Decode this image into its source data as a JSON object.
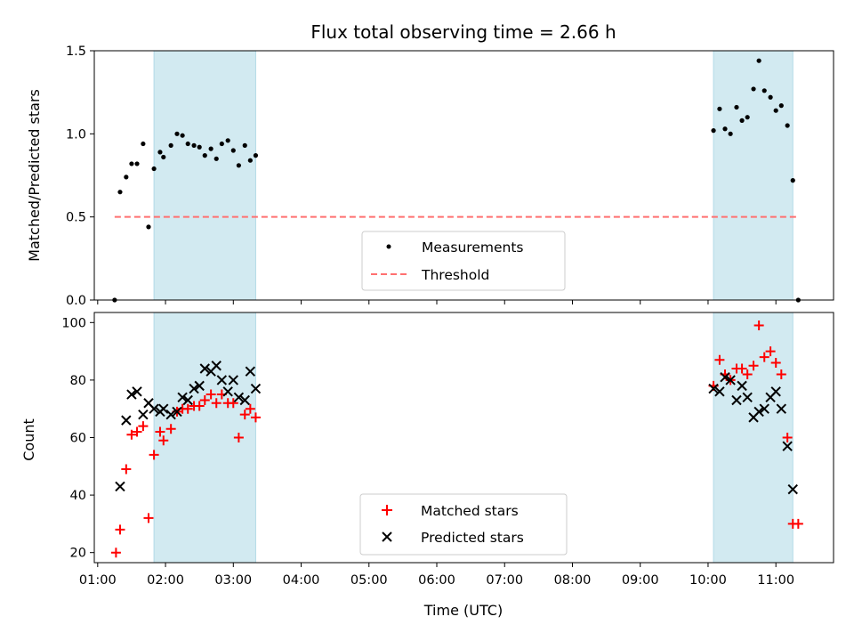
{
  "chart_data": {
    "title": "Flux total observing time = 2.66 h",
    "xlabel": "Time (UTC)",
    "xlim": [
      0.95,
      11.85
    ],
    "x_ticks": [
      {
        "v": 1,
        "label": "01:00"
      },
      {
        "v": 2,
        "label": "02:00"
      },
      {
        "v": 3,
        "label": "03:00"
      },
      {
        "v": 4,
        "label": "04:00"
      },
      {
        "v": 5,
        "label": "05:00"
      },
      {
        "v": 6,
        "label": "06:00"
      },
      {
        "v": 7,
        "label": "07:00"
      },
      {
        "v": 8,
        "label": "08:00"
      },
      {
        "v": 9,
        "label": "09:00"
      },
      {
        "v": 10,
        "label": "10:00"
      },
      {
        "v": 11,
        "label": "11:00"
      }
    ],
    "observing_spans": [
      [
        1.83,
        3.33
      ],
      [
        10.08,
        11.25
      ]
    ],
    "span_color": "#add8e6",
    "panels": [
      {
        "type": "scatter",
        "ylabel": "Matched/Predicted stars",
        "ylim": [
          0,
          1.5
        ],
        "y_ticks": [
          {
            "v": 0,
            "label": "0.0"
          },
          {
            "v": 0.5,
            "label": "0.5"
          },
          {
            "v": 1.0,
            "label": "1.0"
          },
          {
            "v": 1.5,
            "label": "1.5"
          }
        ],
        "legend_location": "lower center",
        "series": [
          {
            "name": "Measurements",
            "marker": "dot",
            "color": "#000000",
            "x": [
              1.25,
              1.33,
              1.42,
              1.5,
              1.58,
              1.67,
              1.75,
              1.83,
              1.92,
              1.97,
              2.08,
              2.17,
              2.25,
              2.33,
              2.42,
              2.5,
              2.58,
              2.67,
              2.75,
              2.83,
              2.92,
              3.0,
              3.08,
              3.17,
              3.25,
              3.33,
              10.08,
              10.17,
              10.25,
              10.33,
              10.42,
              10.5,
              10.58,
              10.67,
              10.75,
              10.83,
              10.92,
              11.0,
              11.08,
              11.17,
              11.25,
              11.33
            ],
            "y": [
              0.0,
              0.65,
              0.74,
              0.82,
              0.82,
              0.94,
              0.44,
              0.79,
              0.89,
              0.86,
              0.93,
              1.0,
              0.99,
              0.94,
              0.93,
              0.92,
              0.87,
              0.91,
              0.85,
              0.94,
              0.96,
              0.9,
              0.81,
              0.93,
              0.84,
              0.87,
              1.02,
              1.15,
              1.03,
              1.0,
              1.16,
              1.08,
              1.1,
              1.27,
              1.44,
              1.26,
              1.22,
              1.14,
              1.17,
              1.05,
              0.72,
              0.0
            ]
          },
          {
            "name": "Threshold",
            "kind": "dashed-line",
            "color": "#ff7070",
            "x": [
              1.25,
              11.33
            ],
            "y": [
              0.5,
              0.5
            ]
          }
        ]
      },
      {
        "type": "scatter",
        "ylabel": "Count",
        "ylim": [
          16.5,
          103.5
        ],
        "y_ticks": [
          {
            "v": 20,
            "label": "20"
          },
          {
            "v": 40,
            "label": "40"
          },
          {
            "v": 60,
            "label": "60"
          },
          {
            "v": 80,
            "label": "80"
          },
          {
            "v": 100,
            "label": "100"
          }
        ],
        "legend_location": "lower center",
        "series": [
          {
            "name": "Matched stars",
            "marker": "plus",
            "color": "#ff0000",
            "x": [
              1.27,
              1.33,
              1.42,
              1.5,
              1.58,
              1.67,
              1.75,
              1.83,
              1.92,
              1.97,
              2.08,
              2.17,
              2.25,
              2.33,
              2.42,
              2.5,
              2.58,
              2.67,
              2.75,
              2.83,
              2.92,
              3.0,
              3.08,
              3.17,
              3.25,
              3.33,
              10.08,
              10.17,
              10.25,
              10.33,
              10.42,
              10.5,
              10.58,
              10.67,
              10.75,
              10.83,
              10.92,
              11.0,
              11.08,
              11.17,
              11.25,
              11.33
            ],
            "y": [
              20,
              28,
              49,
              61,
              62,
              64,
              32,
              54,
              62,
              59,
              63,
              69,
              70,
              70,
              71,
              71,
              73,
              75,
              72,
              75,
              72,
              72,
              60,
              68,
              70,
              67,
              78,
              87,
              82,
              80,
              84,
              84,
              82,
              85,
              99,
              88,
              90,
              86,
              82,
              60,
              30,
              30
            ]
          },
          {
            "name": "Predicted stars",
            "marker": "x",
            "color": "#000000",
            "x": [
              1.33,
              1.42,
              1.5,
              1.58,
              1.67,
              1.75,
              1.83,
              1.92,
              1.97,
              2.08,
              2.17,
              2.25,
              2.33,
              2.42,
              2.5,
              2.58,
              2.67,
              2.75,
              2.83,
              2.92,
              3.0,
              3.08,
              3.17,
              3.25,
              3.33,
              10.08,
              10.17,
              10.25,
              10.33,
              10.42,
              10.5,
              10.58,
              10.67,
              10.75,
              10.83,
              10.92,
              11.0,
              11.08,
              11.17,
              11.25
            ],
            "y": [
              43,
              66,
              75,
              76,
              68,
              72,
              70,
              69,
              70,
              68,
              69,
              74,
              73,
              77,
              78,
              84,
              83,
              85,
              80,
              76,
              80,
              74,
              73,
              83,
              77,
              77,
              76,
              81,
              80,
              73,
              78,
              74,
              67,
              69,
              70,
              74,
              76,
              70,
              57,
              42
            ]
          }
        ]
      }
    ]
  }
}
